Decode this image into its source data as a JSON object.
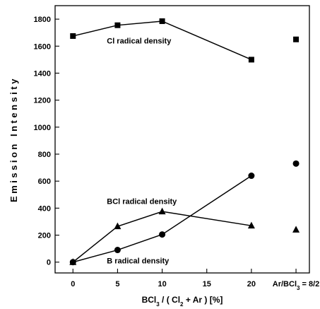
{
  "chart_data": {
    "type": "line",
    "title": "",
    "xlabel": "BCl3 / ( Cl2 + Ar ) [%]",
    "xlabel_parts": {
      "p1": "BCl",
      "sub1": "3",
      "p2": " / ( Cl",
      "sub2": "2",
      "p3": " + Ar )  [%]"
    },
    "ylabel": "Emission Intensity",
    "xlim": [
      -2,
      26.5
    ],
    "ylim": [
      -80,
      1900
    ],
    "x_ticks": [
      0,
      5,
      10,
      15,
      20
    ],
    "y_ticks": [
      0,
      200,
      400,
      600,
      800,
      1000,
      1200,
      1400,
      1600,
      1800
    ],
    "extra_category": {
      "label_parts": {
        "p1": "Ar/BCl",
        "sub1": "3",
        "p2": " = 8/2"
      },
      "x": 25
    },
    "series": [
      {
        "marker": "square",
        "x": [
          0,
          5,
          10,
          20
        ],
        "y": [
          1675,
          1755,
          1785,
          1500
        ],
        "extra_point": 1650,
        "label": "Cl radical density",
        "label_at": [
          3.8,
          1620
        ]
      },
      {
        "marker": "triangle",
        "x": [
          0,
          5,
          10,
          20
        ],
        "y": [
          0,
          265,
          375,
          270
        ],
        "extra_point": 240,
        "label": "BCl radical density",
        "label_at": [
          3.8,
          430
        ]
      },
      {
        "marker": "circle",
        "x": [
          0,
          5,
          10,
          20
        ],
        "y": [
          0,
          90,
          205,
          640
        ],
        "extra_point": 730,
        "label": "B radical density",
        "label_at": [
          3.8,
          -10
        ]
      }
    ]
  }
}
